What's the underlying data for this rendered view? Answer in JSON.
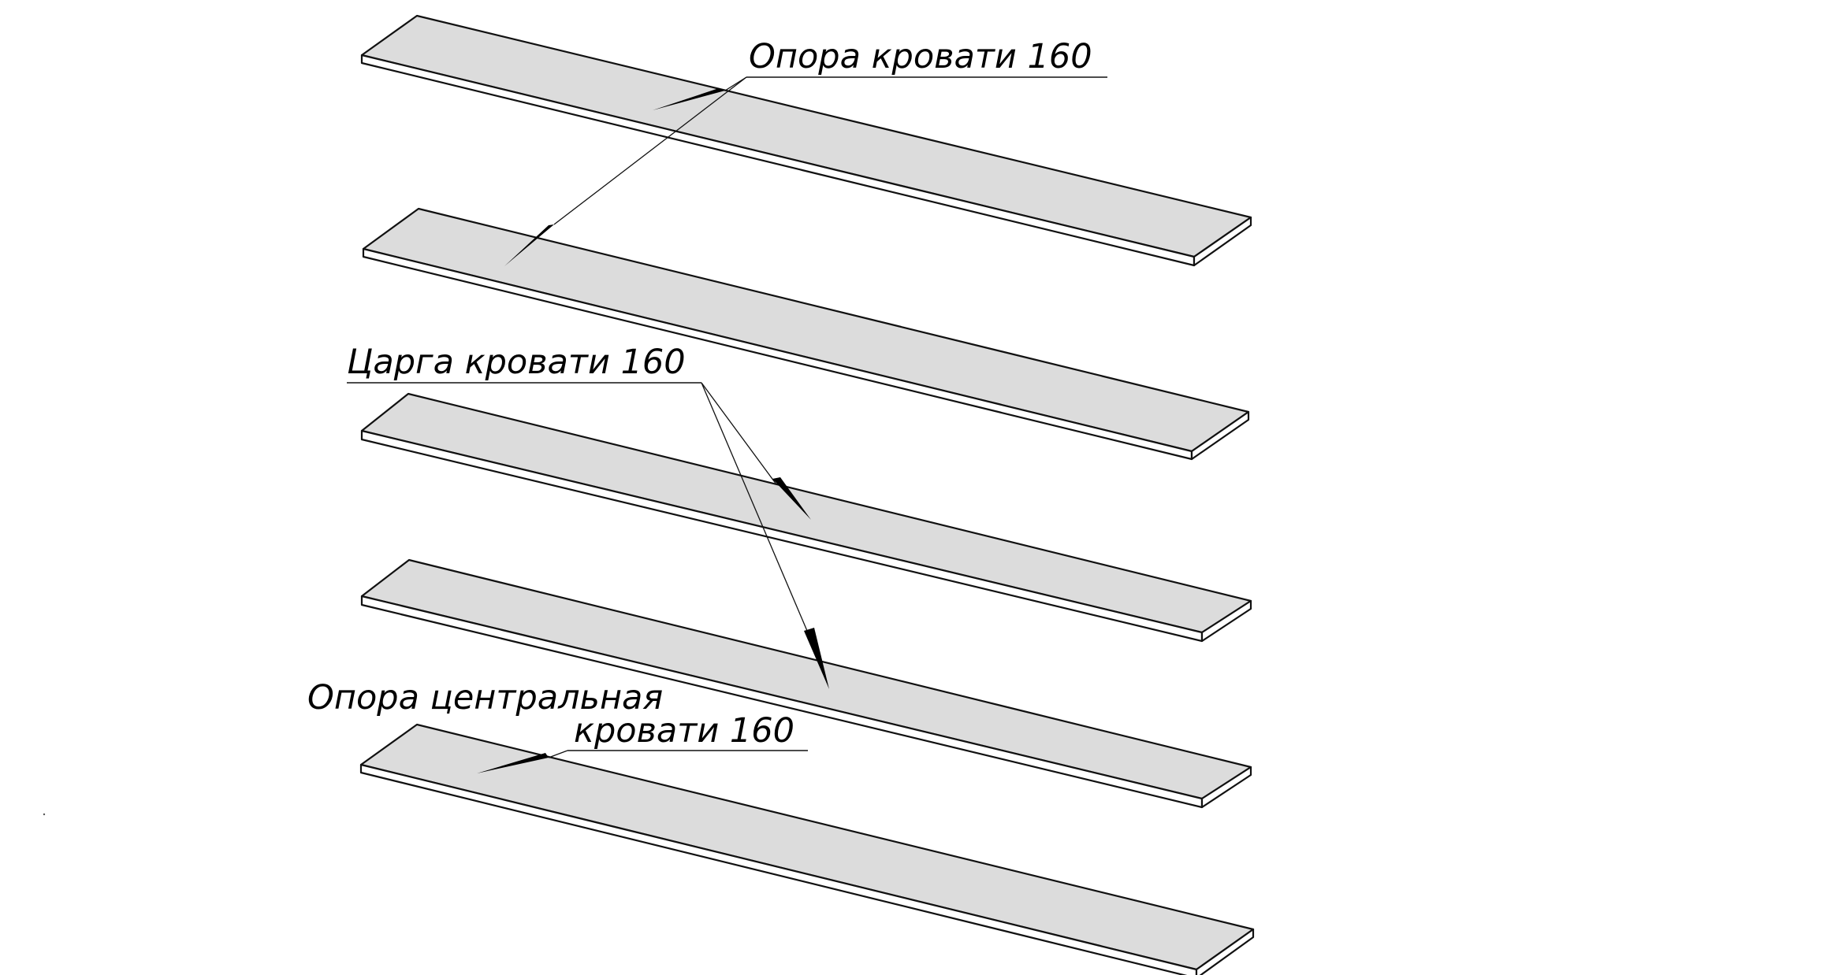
{
  "labels": {
    "support": "Опора кровати 160",
    "side_rail": "Царга кровати 160",
    "center_support_line1": "Опора центральная",
    "center_support_line2": "кровати 160"
  },
  "parts": [
    {
      "name": "plank-1",
      "part": "support"
    },
    {
      "name": "plank-2",
      "part": "support"
    },
    {
      "name": "plank-3",
      "part": "side_rail"
    },
    {
      "name": "plank-4",
      "part": "side_rail"
    },
    {
      "name": "plank-5",
      "part": "center_support"
    }
  ],
  "colors": {
    "plank_face": "#dcdcdc",
    "outline": "#111111",
    "background": "#ffffff"
  }
}
